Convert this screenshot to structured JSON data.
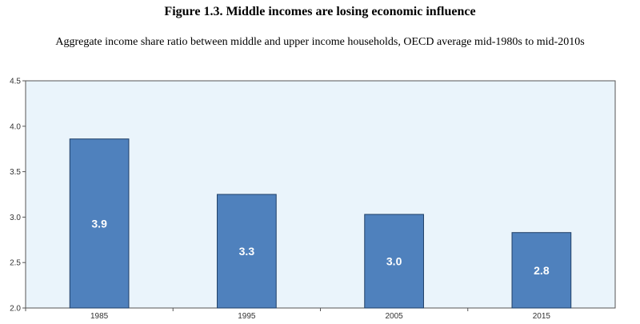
{
  "header": {
    "title": "Figure 1.3. Middle incomes are losing economic influence",
    "subtitle": "Aggregate income share ratio between middle and upper income households, OECD average mid-1980s to mid-2010s"
  },
  "colors": {
    "plot_bg": "#eaf4fb",
    "bar": "#4f81bd",
    "bar_edge": "#1f3f66"
  },
  "chart_data": {
    "type": "bar",
    "categories": [
      "1985",
      "1995",
      "2005",
      "2015"
    ],
    "values": [
      3.86,
      3.25,
      3.03,
      2.83
    ],
    "data_labels": [
      "3.9",
      "3.3",
      "3.0",
      "2.8"
    ],
    "ylim": [
      2.0,
      4.5
    ],
    "yticks": [
      "2.0",
      "2.5",
      "3.0",
      "3.5",
      "4.0",
      "4.5"
    ],
    "grid": false
  }
}
